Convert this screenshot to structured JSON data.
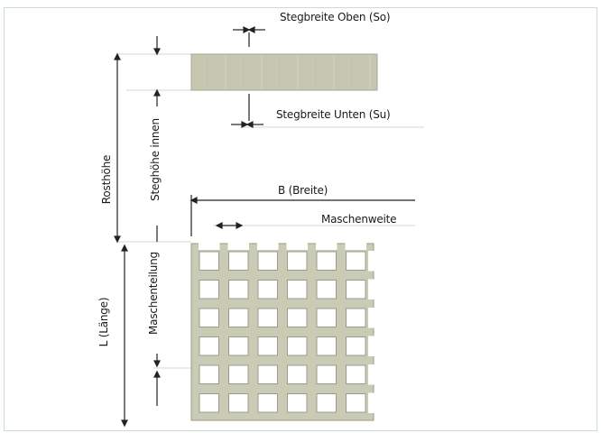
{
  "labels": {
    "stegbreite_oben": "Stegbreite Oben (So)",
    "stegbreite_unten": "Stegbreite Unten (Su)",
    "breite": "B (Breite)",
    "maschenweite": "Maschenweite",
    "rosthoehe": "Rosthöhe",
    "steghoehe_innen": "Steghöhe innen",
    "maschenteilung": "Maschenteilung",
    "laenge": "L (Länge)"
  },
  "colors": {
    "grating_fill": "#c9cbb6",
    "grating_stroke": "#9a9c86",
    "line": "#222222",
    "guide": "#cfcfcf",
    "frame_border": "#c9dbe2"
  },
  "grid": {
    "columns": 7,
    "rows": 7
  }
}
